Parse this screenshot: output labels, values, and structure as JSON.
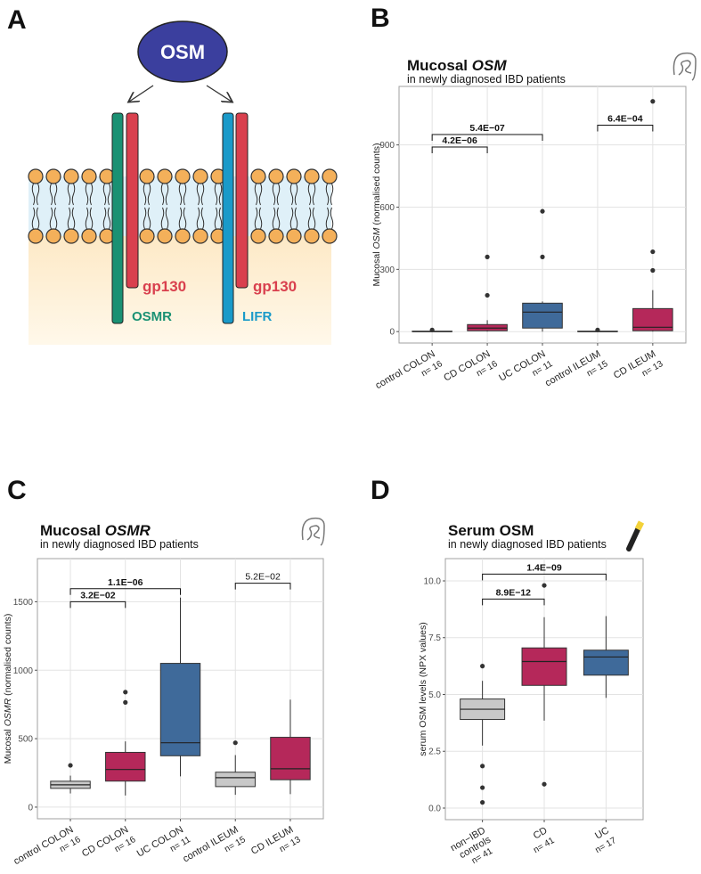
{
  "diagram": {
    "letter": "A",
    "ligand": "OSM",
    "receptors": [
      {
        "chain": "gp130",
        "partner": "OSMR"
      },
      {
        "chain": "gp130",
        "partner": "LIFR"
      }
    ]
  },
  "chart_data": [
    {
      "type": "box",
      "letter": "B",
      "title": "Mucosal",
      "title_gene": "OSM",
      "subtitle": "in newly diagnosed IBD patients",
      "ylabel": "Mucosal",
      "ylabel_gene": "OSM",
      "ylabel_rest": "(normalised counts)",
      "categories": [
        "control COLON",
        "CD COLON",
        "UC COLON",
        "control ILEUM",
        "CD ILEUM"
      ],
      "n_labels": [
        "n= 16",
        "n= 16",
        "n= 11",
        "n= 15",
        "n= 13"
      ],
      "colors": [
        "#c8c8c8",
        "#b5285a",
        "#3f6a9a",
        "#c8c8c8",
        "#b5285a"
      ],
      "boxes": [
        {
          "min": 0,
          "q1": 0,
          "median": 0,
          "q3": 2,
          "max": 5,
          "outliers": [
            8
          ]
        },
        {
          "min": 0,
          "q1": 4,
          "median": 17,
          "q3": 34,
          "max": 55,
          "outliers": [
            175,
            360
          ]
        },
        {
          "min": 0,
          "q1": 17,
          "median": 94,
          "q3": 137,
          "max": 145,
          "outliers": [
            360,
            580
          ]
        },
        {
          "min": 0,
          "q1": 0,
          "median": 0,
          "q3": 2,
          "max": 5,
          "outliers": [
            8
          ]
        },
        {
          "min": 0,
          "q1": 4,
          "median": 21,
          "q3": 111,
          "max": 200,
          "outliers": [
            295,
            385,
            1110
          ]
        }
      ],
      "ylim": [
        -55,
        1182
      ],
      "yticks": [
        0,
        300,
        600,
        900
      ],
      "grid": true,
      "annotations": [
        {
          "label": "4.2E−06",
          "from": 0,
          "to": 1,
          "y": 890,
          "bold": true
        },
        {
          "label": "5.4E−07",
          "from": 0,
          "to": 2,
          "y": 950,
          "bold": true
        },
        {
          "label": "6.4E−04",
          "from": 3,
          "to": 4,
          "y": 995,
          "bold": true
        }
      ]
    },
    {
      "type": "box",
      "letter": "C",
      "title": "Mucosal",
      "title_gene": "OSMR",
      "subtitle": "in newly diagnosed IBD patients",
      "ylabel": "Mucosal",
      "ylabel_gene": "OSMR",
      "ylabel_rest": "(normalised counts)",
      "categories": [
        "control COLON",
        "CD COLON",
        "UC COLON",
        "control ILEUM",
        "CD ILEUM"
      ],
      "n_labels": [
        "n= 16",
        "n= 16",
        "n= 11",
        "n= 15",
        "n= 13"
      ],
      "colors": [
        "#c8c8c8",
        "#b5285a",
        "#3f6a9a",
        "#c8c8c8",
        "#b5285a"
      ],
      "boxes": [
        {
          "min": 100,
          "q1": 137,
          "median": 163,
          "q3": 189,
          "max": 230,
          "outliers": [
            305
          ]
        },
        {
          "min": 85,
          "q1": 190,
          "median": 275,
          "q3": 400,
          "max": 480,
          "outliers": [
            765,
            840
          ]
        },
        {
          "min": 225,
          "q1": 375,
          "median": 470,
          "q3": 1050,
          "max": 1530,
          "outliers": []
        },
        {
          "min": 90,
          "q1": 150,
          "median": 215,
          "q3": 255,
          "max": 380,
          "outliers": [
            470
          ]
        },
        {
          "min": 95,
          "q1": 200,
          "median": 280,
          "q3": 510,
          "max": 785,
          "outliers": []
        }
      ],
      "ylim": [
        -85,
        1815
      ],
      "yticks": [
        0,
        500,
        1000,
        1500
      ],
      "grid": true,
      "annotations": [
        {
          "label": "3.2E−02",
          "from": 0,
          "to": 1,
          "y": 1500,
          "bold": true
        },
        {
          "label": "1.1E−06",
          "from": 0,
          "to": 2,
          "y": 1595,
          "bold": true
        },
        {
          "label": "5.2E−02",
          "from": 3,
          "to": 4,
          "y": 1635,
          "bold": false
        }
      ]
    },
    {
      "type": "box",
      "letter": "D",
      "title": "Serum OSM",
      "subtitle": "in newly diagnosed IBD patients",
      "ylabel": "serum OSM levels (NPX values)",
      "categories": [
        "non−IBD controls",
        "CD",
        "UC"
      ],
      "n_labels": [
        "n= 41",
        "n= 41",
        "n= 17"
      ],
      "wrap_labels": true,
      "colors": [
        "#c8c8c8",
        "#b5285a",
        "#3f6a9a"
      ],
      "boxes": [
        {
          "min": 2.75,
          "q1": 3.9,
          "median": 4.35,
          "q3": 4.8,
          "max": 5.6,
          "outliers": [
            6.25,
            1.85,
            0.9,
            0.25
          ]
        },
        {
          "min": 3.85,
          "q1": 5.4,
          "median": 6.45,
          "q3": 7.05,
          "max": 8.4,
          "outliers": [
            9.8,
            1.05
          ]
        },
        {
          "min": 4.85,
          "q1": 5.85,
          "median": 6.65,
          "q3": 6.95,
          "max": 8.45,
          "outliers": []
        }
      ],
      "ylim": [
        -0.51,
        10.98
      ],
      "yticks": [
        {
          "value": 0,
          "label": "0.0"
        },
        {
          "value": 2.5,
          "label": "2.5"
        },
        {
          "value": 5,
          "label": "5.0"
        },
        {
          "value": 7.5,
          "label": "7.5"
        },
        {
          "value": 10,
          "label": "10.0"
        }
      ],
      "grid": true,
      "annotations": [
        {
          "label": "8.9E−12",
          "from": 0,
          "to": 1,
          "y": 9.2,
          "bold": true
        },
        {
          "label": "1.4E−09",
          "from": 0,
          "to": 2,
          "y": 10.3,
          "bold": true
        }
      ]
    }
  ]
}
